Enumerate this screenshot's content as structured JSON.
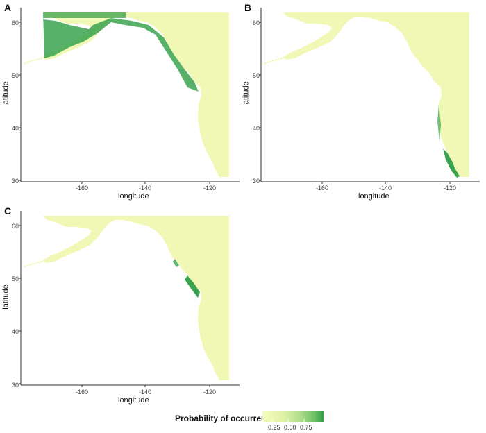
{
  "panels": [
    {
      "letter": "A",
      "xlabel": "longitude",
      "ylabel": "latitude",
      "xticks": [
        "-160",
        "-140",
        "-120"
      ],
      "yticks": [
        "60",
        "50",
        "40",
        "30"
      ]
    },
    {
      "letter": "B",
      "xlabel": "longitude",
      "ylabel": "latitude",
      "xticks": [
        "-160",
        "-140",
        "-120"
      ],
      "yticks": [
        "60",
        "50",
        "40",
        "30"
      ]
    },
    {
      "letter": "C",
      "xlabel": "longitude",
      "ylabel": "latitude",
      "xticks": [
        "-160",
        "-140",
        "-120"
      ],
      "yticks": [
        "60",
        "50",
        "40",
        "30"
      ]
    }
  ],
  "legend": {
    "title": "Probability of occurrence",
    "ticks": [
      "0.25",
      "0.50",
      "0.75"
    ],
    "colors": [
      "#f5fab9",
      "#d9efa0",
      "#a8d98c",
      "#5cb85c",
      "#2e9e45"
    ]
  },
  "colors": {
    "land_low": "#f1f7b5",
    "high_occurrence": "#3aa34f",
    "axis": "#333333"
  }
}
